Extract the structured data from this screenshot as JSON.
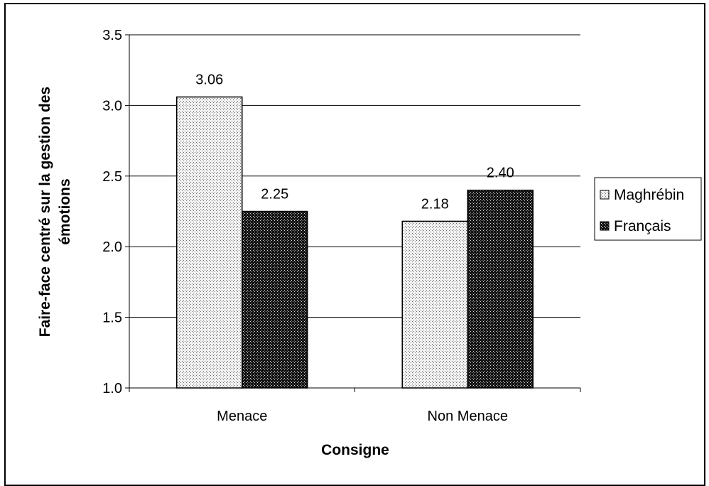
{
  "chart_data": {
    "type": "bar",
    "title": "",
    "xlabel": "Consigne",
    "ylabel_lines": [
      "Faire-face centré sur la gestion des",
      "émotions"
    ],
    "categories": [
      "Menace",
      "Non Menace"
    ],
    "series": [
      {
        "name": "Maghrébin",
        "values": [
          3.06,
          2.18
        ],
        "value_labels": [
          "3.06",
          "2.18"
        ],
        "pattern": "light-dotted"
      },
      {
        "name": "Français",
        "values": [
          2.25,
          2.4
        ],
        "value_labels": [
          "2.25",
          "2.40"
        ],
        "pattern": "dark-dotted"
      }
    ],
    "ylim": [
      1.0,
      3.5
    ],
    "yticks": [
      "1.0",
      "1.5",
      "2.0",
      "2.5",
      "3.0",
      "3.5"
    ],
    "grid": true,
    "legend_position": "right"
  }
}
